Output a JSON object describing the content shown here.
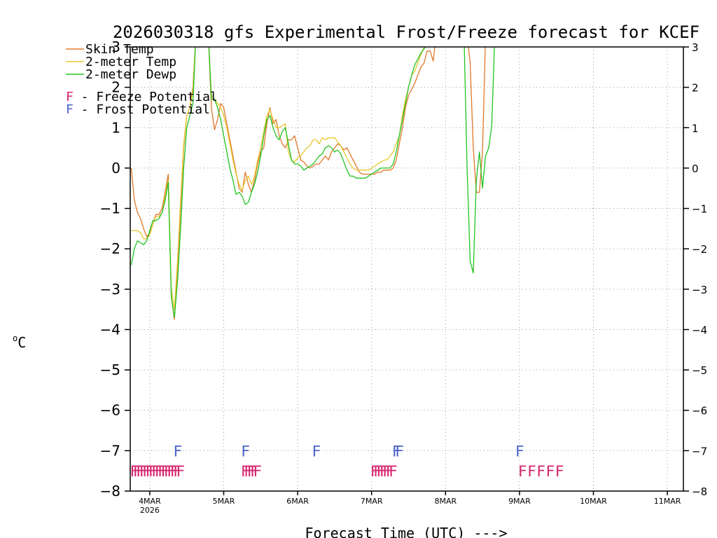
{
  "chart_data": {
    "type": "line",
    "title": "2026030318 gfs Experimental Frost/Freeze forecast for KCEF",
    "xlabel": "Forecast Time (UTC) --->",
    "ylabel": "°C",
    "ylabel_degree": "o",
    "ylabel_unit": "C",
    "ylim": [
      -8,
      3
    ],
    "yticks": [
      -8,
      -7,
      -6,
      -5,
      -4,
      -3,
      -2,
      -1,
      0,
      1,
      2,
      3
    ],
    "ytick_labels": [
      "−8",
      "−7",
      "−6",
      "−5",
      "−4",
      "−3",
      "−2",
      "−1",
      "0",
      "1",
      "2",
      "3"
    ],
    "x_unit": "hours since 2026-03-03 18Z",
    "xlim": [
      0,
      180
    ],
    "xticks": [
      {
        "t": 6,
        "label": "4MAR",
        "sub": "2026"
      },
      {
        "t": 30,
        "label": "5MAR",
        "sub": ""
      },
      {
        "t": 54,
        "label": "6MAR",
        "sub": ""
      },
      {
        "t": 78,
        "label": "7MAR",
        "sub": ""
      },
      {
        "t": 102,
        "label": "8MAR",
        "sub": ""
      },
      {
        "t": 126,
        "label": "9MAR",
        "sub": ""
      },
      {
        "t": 150,
        "label": "10MAR",
        "sub": ""
      },
      {
        "t": 174,
        "label": "11MAR",
        "sub": ""
      }
    ],
    "grid": true,
    "colors": {
      "skin": "#e0782a",
      "temp": "#e8c832",
      "dewp": "#22c322",
      "freeze": "#d6246e",
      "frost": "#4a64c8"
    },
    "legend": {
      "skin": "Skin Temp",
      "temp": "2-meter Temp",
      "dewp": "2-meter Dewp",
      "freeze_letter": "F",
      "freeze_text": " - Freeze Potential",
      "frost_letter": "F",
      "frost_text": " - Frost Potential"
    },
    "series": [
      {
        "name": "Skin Temp",
        "key": "skin",
        "x": [
          0,
          1,
          2,
          3,
          4,
          5,
          6,
          7,
          8,
          9,
          10,
          11,
          12,
          13,
          14,
          15,
          16,
          17,
          18,
          19,
          20,
          21,
          22,
          23,
          24,
          25,
          26,
          27,
          28,
          29,
          30,
          31,
          32,
          33,
          34,
          35,
          36,
          37,
          38,
          39,
          40,
          41,
          42,
          43,
          44,
          45,
          46,
          47,
          48,
          49,
          50,
          51,
          52,
          53,
          54,
          55,
          56,
          57,
          58,
          59,
          60,
          61,
          62,
          63,
          64,
          65,
          66,
          67,
          68,
          69,
          70,
          71,
          72,
          73,
          74,
          75,
          76,
          77,
          78,
          79,
          80,
          81,
          82,
          83,
          84,
          85,
          86,
          87,
          88,
          89,
          90,
          91,
          92,
          93,
          94,
          95,
          96,
          97,
          98,
          99,
          100,
          101,
          102,
          103,
          104,
          105,
          106,
          107,
          108,
          109,
          110,
          111,
          112,
          113,
          114,
          115,
          116,
          117,
          118,
          119,
          120
        ],
        "values": [
          0.0,
          -0.8,
          -1.1,
          -1.25,
          -1.5,
          -1.7,
          -1.6,
          -1.4,
          -1.15,
          -1.15,
          -1.0,
          -0.6,
          -0.15,
          -3.2,
          -3.75,
          -2.5,
          -1.0,
          0.5,
          1.3,
          1.5,
          2.0,
          3.3,
          3.3,
          3.3,
          3.3,
          3.3,
          1.5,
          0.95,
          1.2,
          1.6,
          1.5,
          1.1,
          0.7,
          0.3,
          -0.1,
          -0.5,
          -0.6,
          -0.1,
          -0.4,
          -0.6,
          -0.3,
          0.1,
          0.4,
          0.5,
          1.1,
          1.5,
          1.1,
          1.2,
          0.8,
          0.6,
          0.5,
          0.7,
          0.7,
          0.8,
          0.5,
          0.2,
          0.15,
          0.05,
          0.0,
          0.05,
          0.1,
          0.1,
          0.2,
          0.3,
          0.2,
          0.4,
          0.5,
          0.6,
          0.55,
          0.45,
          0.5,
          0.35,
          0.2,
          0.05,
          -0.1,
          -0.15,
          -0.15,
          -0.15,
          -0.15,
          -0.15,
          -0.1,
          -0.1,
          -0.05,
          -0.05,
          -0.05,
          0.0,
          0.2,
          0.6,
          1.0,
          1.5,
          1.8,
          1.95,
          2.1,
          2.3,
          2.5,
          2.6,
          2.9,
          2.9,
          2.65,
          3.3,
          3.3,
          3.3,
          3.3,
          3.3,
          3.3,
          3.3,
          3.3,
          3.3,
          3.3,
          3.3,
          2.6,
          0.5,
          -0.6,
          -0.6,
          0.4,
          3.3,
          3.3,
          3.3,
          3.3,
          3.3,
          3.3
        ]
      },
      {
        "name": "2-meter Temp",
        "key": "temp",
        "x": [
          0,
          1,
          2,
          3,
          4,
          5,
          6,
          7,
          8,
          9,
          10,
          11,
          12,
          13,
          14,
          15,
          16,
          17,
          18,
          19,
          20,
          21,
          22,
          23,
          24,
          25,
          26,
          27,
          28,
          29,
          30,
          31,
          32,
          33,
          34,
          35,
          36,
          37,
          38,
          39,
          40,
          41,
          42,
          43,
          44,
          45,
          46,
          47,
          48,
          49,
          50,
          51,
          52,
          53,
          54,
          55,
          56,
          57,
          58,
          59,
          60,
          61,
          62,
          63,
          64,
          65,
          66,
          67,
          68,
          69,
          70,
          71,
          72,
          73,
          74,
          75,
          76,
          77,
          78,
          79,
          80,
          81,
          82,
          83,
          84,
          85,
          86,
          87,
          88,
          89,
          90,
          91,
          92,
          93,
          94,
          95,
          96,
          97,
          98,
          99,
          100,
          101,
          102,
          103,
          104,
          105,
          106,
          107,
          108,
          109,
          110,
          111,
          112,
          113,
          114,
          115,
          116,
          117,
          118,
          119,
          120
        ],
        "values": [
          -1.55,
          -1.55,
          -1.55,
          -1.6,
          -1.75,
          -1.75,
          -1.65,
          -1.4,
          -1.2,
          -1.2,
          -1.1,
          -0.7,
          -0.3,
          -3.0,
          -3.5,
          -2.3,
          -0.8,
          0.6,
          1.3,
          1.5,
          1.9,
          3.3,
          3.3,
          3.3,
          3.3,
          3.3,
          1.8,
          1.7,
          1.6,
          1.5,
          1.3,
          1.0,
          0.6,
          0.2,
          -0.15,
          -0.4,
          -0.55,
          -0.3,
          -0.2,
          -0.4,
          -0.2,
          0.2,
          0.5,
          0.9,
          1.3,
          1.45,
          1.2,
          1.0,
          1.0,
          1.05,
          1.1,
          0.4,
          0.2,
          0.15,
          0.25,
          0.3,
          0.4,
          0.5,
          0.55,
          0.7,
          0.7,
          0.6,
          0.75,
          0.7,
          0.75,
          0.75,
          0.75,
          0.65,
          0.55,
          0.4,
          0.25,
          0.1,
          0.0,
          -0.05,
          -0.05,
          -0.05,
          -0.05,
          -0.05,
          0.0,
          0.05,
          0.1,
          0.15,
          0.2,
          0.2,
          0.3,
          0.4,
          0.6,
          0.8,
          1.3,
          1.7,
          2.0,
          2.3,
          2.4,
          2.6,
          2.8,
          3.0,
          3.3,
          3.3,
          3.3,
          3.3,
          3.3,
          3.3,
          3.3,
          3.3,
          3.3,
          3.3,
          3.3,
          3.3,
          3.3,
          3.3,
          3.3,
          3.3,
          3.3,
          3.3,
          3.3,
          3.3,
          3.3,
          3.3,
          3.3,
          3.3,
          3.3
        ]
      },
      {
        "name": "2-meter Dewp",
        "key": "dewp",
        "x": [
          0,
          1,
          2,
          3,
          4,
          5,
          6,
          7,
          8,
          9,
          10,
          11,
          12,
          13,
          14,
          15,
          16,
          17,
          18,
          19,
          20,
          21,
          22,
          23,
          24,
          25,
          26,
          27,
          28,
          29,
          30,
          31,
          32,
          33,
          34,
          35,
          36,
          37,
          38,
          39,
          40,
          41,
          42,
          43,
          44,
          45,
          46,
          47,
          48,
          49,
          50,
          51,
          52,
          53,
          54,
          55,
          56,
          57,
          58,
          59,
          60,
          61,
          62,
          63,
          64,
          65,
          66,
          67,
          68,
          69,
          70,
          71,
          72,
          73,
          74,
          75,
          76,
          77,
          78,
          79,
          80,
          81,
          82,
          83,
          84,
          85,
          86,
          87,
          88,
          89,
          90,
          91,
          92,
          93,
          94,
          95,
          96,
          97,
          98,
          99,
          100,
          101,
          102,
          103,
          104,
          105,
          106,
          107,
          108,
          109,
          110,
          111,
          112,
          113,
          114,
          115,
          116,
          117,
          118,
          119,
          120,
          121,
          122,
          123
        ],
        "values": [
          -2.4,
          -2.0,
          -1.8,
          -1.85,
          -1.9,
          -1.8,
          -1.55,
          -1.3,
          -1.3,
          -1.25,
          -1.1,
          -0.8,
          -0.35,
          -3.2,
          -3.7,
          -2.8,
          -1.5,
          0.0,
          1.0,
          1.3,
          1.6,
          3.3,
          3.3,
          3.3,
          3.3,
          3.3,
          1.7,
          1.7,
          1.5,
          1.2,
          0.8,
          0.4,
          0.0,
          -0.3,
          -0.65,
          -0.6,
          -0.7,
          -0.9,
          -0.85,
          -0.6,
          -0.4,
          -0.1,
          0.3,
          0.8,
          1.2,
          1.3,
          1.0,
          0.8,
          0.7,
          0.9,
          1.0,
          0.6,
          0.2,
          0.1,
          0.1,
          0.05,
          -0.05,
          0.0,
          0.05,
          0.1,
          0.2,
          0.3,
          0.35,
          0.5,
          0.55,
          0.5,
          0.4,
          0.45,
          0.35,
          0.15,
          -0.05,
          -0.2,
          -0.2,
          -0.25,
          -0.25,
          -0.25,
          -0.25,
          -0.2,
          -0.15,
          -0.1,
          -0.05,
          0.0,
          0.0,
          0.0,
          0.0,
          0.1,
          0.4,
          0.8,
          1.2,
          1.6,
          2.0,
          2.3,
          2.55,
          2.7,
          2.85,
          2.95,
          3.05,
          3.3,
          3.3,
          3.3,
          3.3,
          3.3,
          3.3,
          3.3,
          3.3,
          3.3,
          3.3,
          3.3,
          3.3,
          0.0,
          -2.3,
          -2.6,
          -0.3,
          0.4,
          -0.5,
          0.3,
          0.5,
          1.05,
          3.3,
          3.3,
          3.3,
          3.3,
          3.3,
          3.3
        ]
      }
    ],
    "frost_marks": [
      {
        "label": "F",
        "t": 15
      },
      {
        "label": "F",
        "t": 37
      },
      {
        "label": "F",
        "t": 60
      },
      {
        "label": "F",
        "t": 86
      },
      {
        "label": "F",
        "t": 87
      },
      {
        "label": "F",
        "t": 126
      }
    ],
    "freeze_marks": [
      {
        "label": "F",
        "t": 0
      },
      {
        "label": "F",
        "t": 1
      },
      {
        "label": "F",
        "t": 2
      },
      {
        "label": "F",
        "t": 3
      },
      {
        "label": "F",
        "t": 4
      },
      {
        "label": "F",
        "t": 5
      },
      {
        "label": "F",
        "t": 6
      },
      {
        "label": "F",
        "t": 7
      },
      {
        "label": "F",
        "t": 8
      },
      {
        "label": "F",
        "t": 9
      },
      {
        "label": "F",
        "t": 10
      },
      {
        "label": "F",
        "t": 11
      },
      {
        "label": "F",
        "t": 12
      },
      {
        "label": "F",
        "t": 13
      },
      {
        "label": "F",
        "t": 14
      },
      {
        "label": "F",
        "t": 15
      },
      {
        "label": "F",
        "t": 36
      },
      {
        "label": "F",
        "t": 37
      },
      {
        "label": "F",
        "t": 38
      },
      {
        "label": "F",
        "t": 39
      },
      {
        "label": "F",
        "t": 40
      },
      {
        "label": "F",
        "t": 78
      },
      {
        "label": "F",
        "t": 79
      },
      {
        "label": "F",
        "t": 80
      },
      {
        "label": "F",
        "t": 81
      },
      {
        "label": "F",
        "t": 82
      },
      {
        "label": "F",
        "t": 83
      },
      {
        "label": "F",
        "t": 84
      },
      {
        "label": "F",
        "t": 126
      },
      {
        "label": "F",
        "t": 129
      },
      {
        "label": "F",
        "t": 132
      },
      {
        "label": "F",
        "t": 135
      },
      {
        "label": "F",
        "t": 138
      }
    ]
  }
}
